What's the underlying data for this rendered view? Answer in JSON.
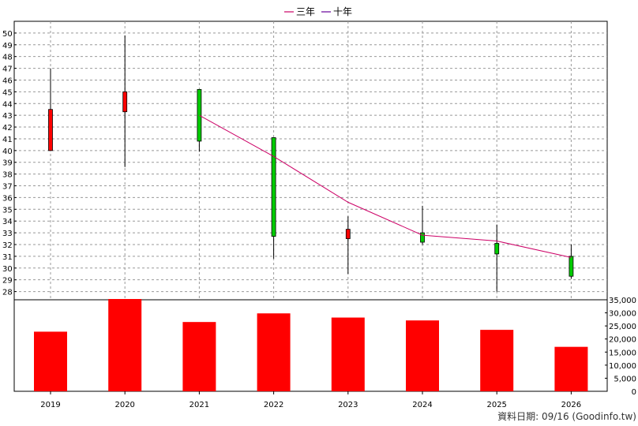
{
  "chart_data": {
    "type": "candlestick+line+bar",
    "legend": [
      {
        "label": "三年",
        "color": "#cc0066"
      },
      {
        "label": "十年",
        "color": "#660099"
      }
    ],
    "categories": [
      "2019",
      "2020",
      "2021",
      "2022",
      "2023",
      "2024",
      "2025",
      "2026"
    ],
    "price_axis": {
      "ylim": [
        27.3,
        51
      ],
      "ticks": [
        28,
        29,
        30,
        31,
        32,
        33,
        34,
        35,
        36,
        37,
        38,
        39,
        40,
        41,
        42,
        43,
        44,
        45,
        46,
        47,
        48,
        49,
        50
      ],
      "tick_labels": [
        "28",
        "29",
        "30",
        "31",
        "32",
        "33",
        "34",
        "35",
        "36",
        "37",
        "38",
        "39",
        "40",
        "41",
        "42",
        "43",
        "44",
        "45",
        "46",
        "47",
        "48",
        "49",
        "50"
      ]
    },
    "candles": [
      {
        "x": "2019",
        "open": 40.0,
        "high": 47.0,
        "low": 40.0,
        "close": 43.5,
        "color": "#ff0000"
      },
      {
        "x": "2020",
        "open": 43.3,
        "high": 49.8,
        "low": 38.6,
        "close": 45.0,
        "color": "#ff0000"
      },
      {
        "x": "2021",
        "open": 45.2,
        "high": 45.2,
        "low": 39.9,
        "close": 40.8,
        "color": "#00cc00"
      },
      {
        "x": "2022",
        "open": 41.1,
        "high": 41.1,
        "low": 30.8,
        "close": 32.7,
        "color": "#00cc00"
      },
      {
        "x": "2023",
        "open": 32.5,
        "high": 34.4,
        "low": 29.5,
        "close": 33.3,
        "color": "#ff0000"
      },
      {
        "x": "2024",
        "open": 33.0,
        "high": 35.3,
        "low": 32.0,
        "close": 32.2,
        "color": "#00cc00"
      },
      {
        "x": "2025",
        "open": 32.1,
        "high": 33.7,
        "low": 28.0,
        "close": 31.2,
        "color": "#00cc00"
      },
      {
        "x": "2026",
        "open": 31.0,
        "high": 32.0,
        "low": 29.1,
        "close": 29.3,
        "color": "#00cc00"
      }
    ],
    "line_series": [
      {
        "name": "三年",
        "color": "#cc0066",
        "points": [
          [
            "2021",
            43.0
          ],
          [
            "2022",
            39.5
          ],
          [
            "2023",
            35.6
          ],
          [
            "2024",
            32.8
          ],
          [
            "2025",
            32.3
          ],
          [
            "2026",
            30.9
          ]
        ]
      }
    ],
    "volume_axis": {
      "ylim": [
        0,
        35000
      ],
      "ticks": [
        0,
        5000,
        10000,
        15000,
        20000,
        25000,
        30000,
        35000
      ],
      "tick_labels": [
        "0",
        "5,000",
        "10,000",
        "15,000",
        "20,000",
        "25,000",
        "30,000",
        "35,000"
      ]
    },
    "volume": {
      "color": "#ff0000",
      "values": [
        22800,
        35300,
        26500,
        29800,
        28200,
        27100,
        23500,
        17000
      ]
    }
  },
  "footer": {
    "date_text": "資料日期: 09/16  (Goodinfo.tw)"
  }
}
